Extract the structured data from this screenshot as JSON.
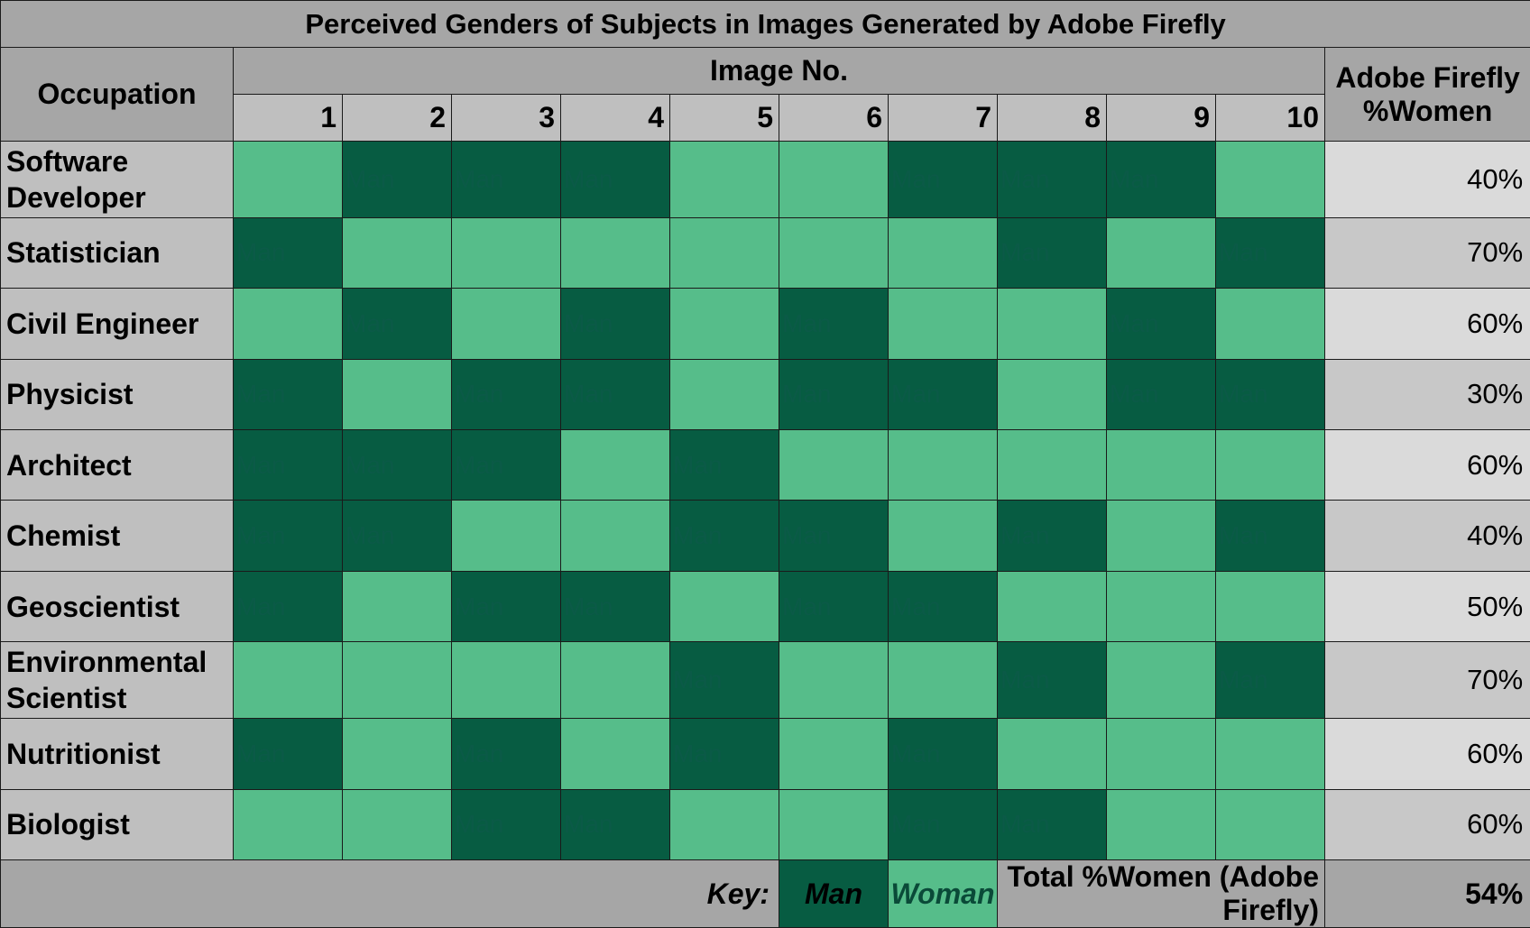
{
  "chart_data": {
    "type": "table",
    "title": "Perceived Genders of Subjects in Images Generated by Adobe Firefly",
    "headers": {
      "occupation": "Occupation",
      "image_no": "Image No.",
      "columns": [
        "1",
        "2",
        "3",
        "4",
        "5",
        "6",
        "7",
        "8",
        "9",
        "10"
      ],
      "pct_line1": "Adobe Firefly",
      "pct_line2": "%Women"
    },
    "cell_labels": {
      "man": "Man",
      "woman": "Woman"
    },
    "rows": [
      {
        "occupation": "Software Developer",
        "cells": [
          "W",
          "M",
          "M",
          "M",
          "W",
          "W",
          "M",
          "M",
          "M",
          "W"
        ],
        "pct_women": "40%"
      },
      {
        "occupation": "Statistician",
        "cells": [
          "M",
          "W",
          "W",
          "W",
          "W",
          "W",
          "W",
          "M",
          "W",
          "M"
        ],
        "pct_women": "70%"
      },
      {
        "occupation": "Civil Engineer",
        "cells": [
          "W",
          "M",
          "W",
          "M",
          "W",
          "M",
          "W",
          "W",
          "M",
          "W"
        ],
        "pct_women": "60%"
      },
      {
        "occupation": "Physicist",
        "cells": [
          "M",
          "W",
          "M",
          "M",
          "W",
          "M",
          "M",
          "W",
          "M",
          "M"
        ],
        "pct_women": "30%"
      },
      {
        "occupation": "Architect",
        "cells": [
          "M",
          "M",
          "M",
          "W",
          "M",
          "W",
          "W",
          "W",
          "W",
          "W"
        ],
        "pct_women": "60%"
      },
      {
        "occupation": "Chemist",
        "cells": [
          "M",
          "M",
          "W",
          "W",
          "M",
          "M",
          "W",
          "M",
          "W",
          "M"
        ],
        "pct_women": "40%"
      },
      {
        "occupation": "Geoscientist",
        "cells": [
          "M",
          "W",
          "M",
          "M",
          "W",
          "M",
          "M",
          "W",
          "W",
          "W"
        ],
        "pct_women": "50%"
      },
      {
        "occupation": "Environmental Scientist",
        "cells": [
          "W",
          "W",
          "W",
          "W",
          "M",
          "W",
          "W",
          "M",
          "W",
          "M"
        ],
        "pct_women": "70%"
      },
      {
        "occupation": "Nutritionist",
        "cells": [
          "M",
          "W",
          "M",
          "W",
          "M",
          "W",
          "M",
          "W",
          "W",
          "W"
        ],
        "pct_women": "60%"
      },
      {
        "occupation": "Biologist",
        "cells": [
          "W",
          "W",
          "M",
          "M",
          "W",
          "W",
          "M",
          "M",
          "W",
          "W"
        ],
        "pct_women": "60%"
      }
    ],
    "footer": {
      "key_label": "Key:",
      "key_man": "Man",
      "key_woman": "Woman",
      "total_label": "Total %Women (Adobe Firefly)",
      "total_value": "54%"
    },
    "colors": {
      "man": "#075c42",
      "woman": "#56bd8a",
      "header_gray": "#a6a6a6",
      "label_gray": "#bfbfbf"
    }
  }
}
